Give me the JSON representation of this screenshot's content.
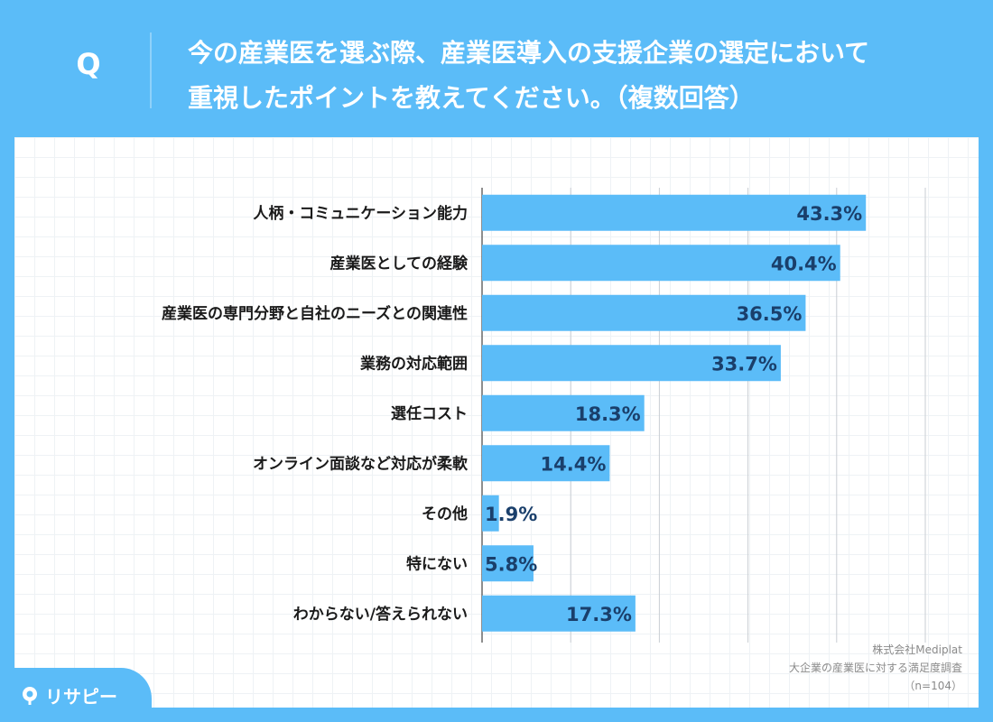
{
  "header": {
    "q_label": "Q",
    "question": "今の産業医を選ぶ際、産業医導入の支援企業の選定において\n重視したポイントを教えてください。（複数回答）"
  },
  "chart_data": {
    "type": "bar",
    "orientation": "horizontal",
    "title": "今の産業医を選ぶ際、産業医導入の支援企業の選定において重視したポイントを教えてください。（複数回答）",
    "categories": [
      "人柄・コミュニケーション能力",
      "産業医としての経験",
      "産業医の専門分野と自社のニーズとの関連性",
      "業務の対応範囲",
      "選任コスト",
      "オンライン面談など対応が柔軟",
      "その他",
      "特にない",
      "わからない/答えられない"
    ],
    "values": [
      43.3,
      40.4,
      36.5,
      33.7,
      18.3,
      14.4,
      1.9,
      5.8,
      17.3
    ],
    "value_labels": [
      "43.3%",
      "40.4%",
      "36.5%",
      "33.7%",
      "18.3%",
      "14.4%",
      "1.9%",
      "5.8%",
      "17.3%"
    ],
    "unit": "%",
    "xlim": [
      0,
      50
    ],
    "grid": true,
    "bar_color": "#5bbcf8"
  },
  "source": {
    "company": "株式会社Mediplat",
    "survey": "大企業の産業医に対する満足度調査",
    "sample": "（n=104）"
  },
  "logo": {
    "text": "リサピー"
  }
}
